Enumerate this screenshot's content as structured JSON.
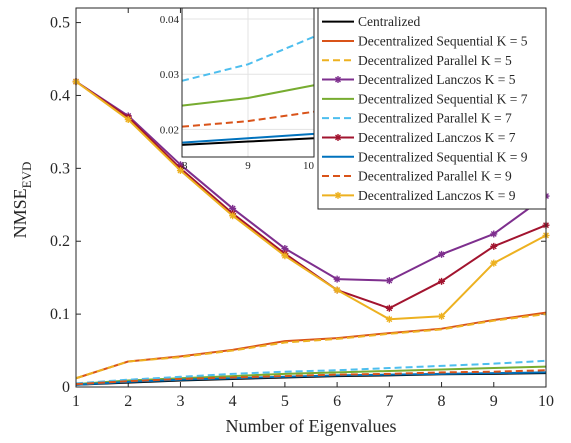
{
  "chart_data": [
    {
      "type": "line",
      "xlabel": "Number of Eigenvalues",
      "ylabel_main": "NMSE",
      "ylabel_sub": "EVD",
      "x": [
        1,
        2,
        3,
        4,
        5,
        6,
        7,
        8,
        9,
        10
      ],
      "xlim": [
        1,
        10
      ],
      "ylim": [
        0,
        0.52
      ],
      "xticks": [
        "1",
        "2",
        "3",
        "4",
        "5",
        "6",
        "7",
        "8",
        "9",
        "10"
      ],
      "yticks": [
        {
          "v": 0,
          "label": "0"
        },
        {
          "v": 0.1,
          "label": "0.1"
        },
        {
          "v": 0.2,
          "label": "0.2"
        },
        {
          "v": 0.3,
          "label": "0.3"
        },
        {
          "v": 0.4,
          "label": "0.4"
        },
        {
          "v": 0.5,
          "label": "0.5"
        }
      ],
      "legend_position": "top-right",
      "series": [
        {
          "name": "Centralized",
          "color": "#000000",
          "dash": "solid",
          "marker": "none",
          "values": [
            0.003,
            0.006,
            0.009,
            0.011,
            0.013,
            0.015,
            0.016,
            0.0175,
            0.018,
            0.019
          ]
        },
        {
          "name": "Decentralized Sequential K = 5",
          "color": "#D95319",
          "dash": "solid",
          "marker": "none",
          "values": [
            0.012,
            0.035,
            0.042,
            0.051,
            0.063,
            0.067,
            0.074,
            0.08,
            0.092,
            0.102
          ]
        },
        {
          "name": "Decentralized Parallel K = 5",
          "color": "#EDB120",
          "dash": "dashed",
          "marker": "none",
          "values": [
            0.012,
            0.035,
            0.041,
            0.05,
            0.061,
            0.066,
            0.073,
            0.079,
            0.091,
            0.1
          ]
        },
        {
          "name": "Decentralized Lanczos K = 5",
          "color": "#7E2F8E",
          "dash": "solid",
          "marker": "star",
          "values": [
            0.419,
            0.372,
            0.305,
            0.245,
            0.19,
            0.148,
            0.146,
            0.182,
            0.21,
            0.262
          ]
        },
        {
          "name": "Decentralized Sequential K = 7",
          "color": "#77AC30",
          "dash": "solid",
          "marker": "none",
          "values": [
            0.004,
            0.009,
            0.012,
            0.015,
            0.018,
            0.02,
            0.022,
            0.024,
            0.026,
            0.028
          ]
        },
        {
          "name": "Decentralized Parallel K = 7",
          "color": "#4DBEEE",
          "dash": "dashed",
          "marker": "none",
          "values": [
            0.005,
            0.01,
            0.014,
            0.018,
            0.021,
            0.023,
            0.026,
            0.029,
            0.032,
            0.036
          ]
        },
        {
          "name": "Decentralized Lanczos K = 7",
          "color": "#A2142F",
          "dash": "solid",
          "marker": "star",
          "values": [
            0.419,
            0.37,
            0.3,
            0.238,
            0.183,
            0.133,
            0.108,
            0.145,
            0.193,
            0.222
          ]
        },
        {
          "name": "Decentralized Sequential K = 9",
          "color": "#0072BD",
          "dash": "solid",
          "marker": "none",
          "values": [
            0.003,
            0.007,
            0.01,
            0.012,
            0.014,
            0.016,
            0.017,
            0.018,
            0.019,
            0.02
          ]
        },
        {
          "name": "Decentralized Parallel K = 9",
          "color": "#D95319",
          "dash": "dashed",
          "marker": "none",
          "values": [
            0.004,
            0.008,
            0.011,
            0.013,
            0.015,
            0.017,
            0.018,
            0.02,
            0.021,
            0.023
          ]
        },
        {
          "name": "Decentralized Lanczos K = 9",
          "color": "#EDB120",
          "dash": "solid",
          "marker": "star",
          "values": [
            0.419,
            0.367,
            0.297,
            0.235,
            0.18,
            0.133,
            0.093,
            0.097,
            0.17,
            0.208
          ]
        }
      ]
    },
    {
      "type": "line",
      "role": "inset",
      "x": [
        8,
        9,
        10
      ],
      "xlim": [
        8,
        10
      ],
      "ylim": [
        0.015,
        0.042
      ],
      "xticks": [
        "8",
        "9",
        "10"
      ],
      "yticks": [
        {
          "v": 0.02,
          "label": "0.02"
        },
        {
          "v": 0.03,
          "label": "0.03"
        },
        {
          "v": 0.04,
          "label": "0.04"
        }
      ],
      "series": [
        {
          "name": "Decentralized Parallel K = 7",
          "color": "#4DBEEE",
          "dash": "dashed",
          "values": [
            0.0288,
            0.0318,
            0.0368
          ]
        },
        {
          "name": "Decentralized Sequential K = 7",
          "color": "#77AC30",
          "dash": "solid",
          "values": [
            0.0243,
            0.0257,
            0.028
          ]
        },
        {
          "name": "Decentralized Parallel K = 9",
          "color": "#D95319",
          "dash": "dashed",
          "values": [
            0.0205,
            0.0215,
            0.0232
          ]
        },
        {
          "name": "Decentralized Sequential K = 9",
          "color": "#0072BD",
          "dash": "solid",
          "values": [
            0.0176,
            0.0184,
            0.0192
          ]
        },
        {
          "name": "Centralized",
          "color": "#000000",
          "dash": "solid",
          "values": [
            0.0172,
            0.0178,
            0.0184
          ]
        }
      ]
    }
  ]
}
